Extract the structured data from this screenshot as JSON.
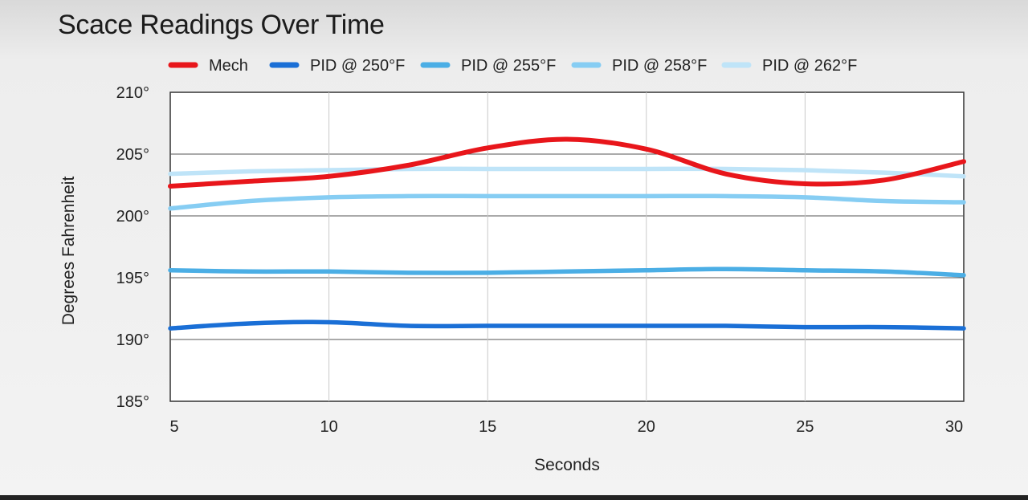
{
  "chart_data": {
    "type": "line",
    "title": "Scace Readings Over Time",
    "xlabel": "Seconds",
    "ylabel": "Degrees Fahrenheit",
    "xlim": [
      5,
      30
    ],
    "ylim": [
      185,
      210
    ],
    "x_ticks": [
      5,
      10,
      15,
      20,
      25,
      30
    ],
    "y_ticks": [
      185,
      190,
      195,
      200,
      205,
      210
    ],
    "y_tick_labels": [
      "185°",
      "190°",
      "195°",
      "200°",
      "205°",
      "210°"
    ],
    "grid": true,
    "legend_position": "top",
    "x": [
      5,
      7.5,
      10,
      12.5,
      15,
      17.5,
      20,
      22.5,
      25,
      27.5,
      30
    ],
    "series": [
      {
        "name": "Mech",
        "color": "#e8161b",
        "values": [
          202.4,
          202.8,
          203.2,
          204.1,
          205.5,
          206.2,
          205.4,
          203.4,
          202.6,
          202.9,
          204.4
        ]
      },
      {
        "name": "PID @ 250°F",
        "color": "#1a6fd6",
        "values": [
          190.9,
          191.3,
          191.4,
          191.1,
          191.1,
          191.1,
          191.1,
          191.1,
          191.0,
          191.0,
          190.9
        ]
      },
      {
        "name": "PID @ 255°F",
        "color": "#4baee5",
        "values": [
          195.6,
          195.5,
          195.5,
          195.4,
          195.4,
          195.5,
          195.6,
          195.7,
          195.6,
          195.5,
          195.2
        ]
      },
      {
        "name": "PID @ 258°F",
        "color": "#86cdf3",
        "values": [
          200.6,
          201.2,
          201.5,
          201.6,
          201.6,
          201.6,
          201.6,
          201.6,
          201.5,
          201.2,
          201.1
        ]
      },
      {
        "name": "PID @ 262°F",
        "color": "#bfe4f8",
        "values": [
          203.4,
          203.6,
          203.7,
          203.8,
          203.8,
          203.8,
          203.8,
          203.8,
          203.7,
          203.5,
          203.2
        ]
      }
    ]
  }
}
